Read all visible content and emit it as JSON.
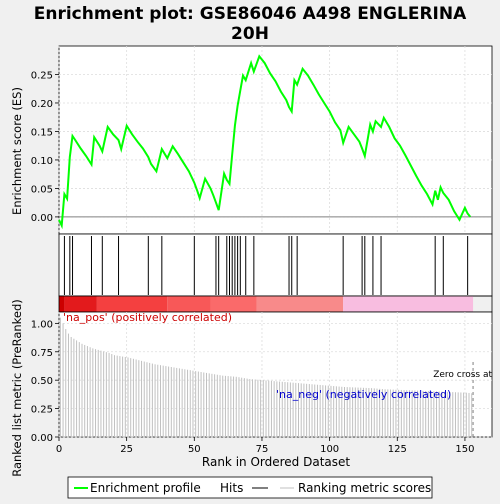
{
  "chart_data": {
    "type": "line",
    "title_line1": "Enrichment plot: GSE86046 A498 ENGLERINA",
    "title_line2": "20H",
    "top_panel": {
      "ylabel": "Enrichment score (ES)",
      "ylim": [
        -0.03,
        0.3
      ],
      "yticks": [
        0.0,
        0.05,
        0.1,
        0.15,
        0.2,
        0.25
      ],
      "ytick_labels": [
        "0.00",
        "0.05",
        "0.10",
        "0.15",
        "0.20",
        "0.25"
      ],
      "series_name": "Enrichment profile",
      "color": "#00ff00",
      "x": [
        0,
        1,
        2,
        3,
        4,
        5,
        6,
        8,
        10,
        12,
        13,
        15,
        16,
        18,
        20,
        22,
        23,
        25,
        27,
        29,
        31,
        33,
        34,
        36,
        38,
        40,
        42,
        44,
        46,
        48,
        50,
        51,
        52,
        54,
        56,
        57,
        58,
        59,
        61,
        62,
        63,
        64,
        65,
        66,
        67,
        68,
        69,
        71,
        72,
        74,
        76,
        78,
        80,
        82,
        84,
        85,
        86,
        87,
        88,
        90,
        92,
        94,
        96,
        98,
        100,
        102,
        104,
        105,
        107,
        109,
        111,
        112,
        113,
        115,
        116,
        117,
        119,
        120,
        122,
        124,
        126,
        128,
        130,
        132,
        134,
        136,
        138,
        139,
        140,
        141,
        142,
        144,
        146,
        148,
        150,
        151,
        152
      ],
      "y": [
        -0.005,
        -0.015,
        0.04,
        0.032,
        0.105,
        0.142,
        0.135,
        0.12,
        0.107,
        0.092,
        0.14,
        0.125,
        0.115,
        0.158,
        0.145,
        0.135,
        0.119,
        0.16,
        0.145,
        0.132,
        0.12,
        0.105,
        0.093,
        0.08,
        0.119,
        0.103,
        0.124,
        0.11,
        0.095,
        0.08,
        0.06,
        0.047,
        0.033,
        0.067,
        0.05,
        0.038,
        0.025,
        0.012,
        0.076,
        0.065,
        0.058,
        0.11,
        0.16,
        0.195,
        0.222,
        0.248,
        0.24,
        0.27,
        0.255,
        0.282,
        0.27,
        0.252,
        0.238,
        0.22,
        0.205,
        0.193,
        0.185,
        0.24,
        0.232,
        0.26,
        0.248,
        0.232,
        0.215,
        0.2,
        0.185,
        0.166,
        0.152,
        0.13,
        0.158,
        0.145,
        0.132,
        0.12,
        0.107,
        0.162,
        0.15,
        0.168,
        0.158,
        0.174,
        0.158,
        0.138,
        0.125,
        0.108,
        0.09,
        0.072,
        0.055,
        0.04,
        0.022,
        0.046,
        0.03,
        0.052,
        0.042,
        0.03,
        0.01,
        -0.005,
        0.016,
        0.006,
        0.0
      ]
    },
    "hits_panel": {
      "series_name": "Hits",
      "positions": [
        2,
        4,
        5,
        12,
        16,
        22,
        33,
        38,
        50,
        58,
        59,
        62,
        63,
        64,
        65,
        66,
        67,
        69,
        72,
        85,
        86,
        88,
        105,
        112,
        113,
        116,
        119,
        139,
        142,
        151
      ]
    },
    "bottom_panel": {
      "ylabel": "Ranked list metric (PreRanked)",
      "xlabel": "Rank in Ordered Dataset",
      "ylim": [
        0.0,
        1.1
      ],
      "yticks": [
        0.0,
        0.25,
        0.5,
        0.75,
        1.0
      ],
      "ytick_labels": [
        "0.00",
        "0.25",
        "0.50",
        "0.75",
        "1.00"
      ],
      "xlim": [
        0,
        160
      ],
      "xticks": [
        0,
        25,
        50,
        75,
        100,
        125,
        150
      ],
      "xtick_labels": [
        "0",
        "25",
        "50",
        "75",
        "100",
        "125",
        "150"
      ],
      "series_name": "Ranking metric scores",
      "metric_x": [
        0,
        1,
        2,
        3,
        4,
        6,
        8,
        10,
        12,
        15,
        18,
        20,
        25,
        30,
        35,
        40,
        45,
        50,
        55,
        60,
        65,
        70,
        75,
        80,
        85,
        90,
        95,
        100,
        105,
        110,
        115,
        120,
        125,
        130,
        135,
        140,
        145,
        150,
        152,
        153
      ],
      "metric_y": [
        1.05,
        1.0,
        0.95,
        0.91,
        0.88,
        0.85,
        0.82,
        0.8,
        0.78,
        0.76,
        0.74,
        0.72,
        0.7,
        0.67,
        0.64,
        0.62,
        0.6,
        0.58,
        0.56,
        0.54,
        0.53,
        0.51,
        0.5,
        0.49,
        0.48,
        0.47,
        0.46,
        0.45,
        0.44,
        0.435,
        0.43,
        0.42,
        0.415,
        0.41,
        0.405,
        0.4,
        0.395,
        0.39,
        0.385,
        0.0
      ],
      "label_pos": "'na_pos' (positively correlated)",
      "label_neg": "'na_neg' (negatively correlated)",
      "zero_cross_label": "Zero cross at",
      "zero_cross_rank": 153
    },
    "heat_bar": {
      "segments": [
        {
          "from": 0,
          "to": 2,
          "color": "#cc0000"
        },
        {
          "from": 2,
          "to": 14,
          "color": "#e31a1c"
        },
        {
          "from": 14,
          "to": 40,
          "color": "#f44040"
        },
        {
          "from": 40,
          "to": 56,
          "color": "#f85858"
        },
        {
          "from": 56,
          "to": 73,
          "color": "#fa6a6a"
        },
        {
          "from": 73,
          "to": 105,
          "color": "#f88a8a"
        },
        {
          "from": 105,
          "to": 153,
          "color": "#f8bde0"
        }
      ]
    },
    "legend": [
      {
        "name": "Enrichment profile",
        "color": "#00ff00"
      },
      {
        "name": "Hits",
        "color": "#000000"
      },
      {
        "name": "Ranking metric scores",
        "color": "#c0c0c0"
      }
    ]
  }
}
